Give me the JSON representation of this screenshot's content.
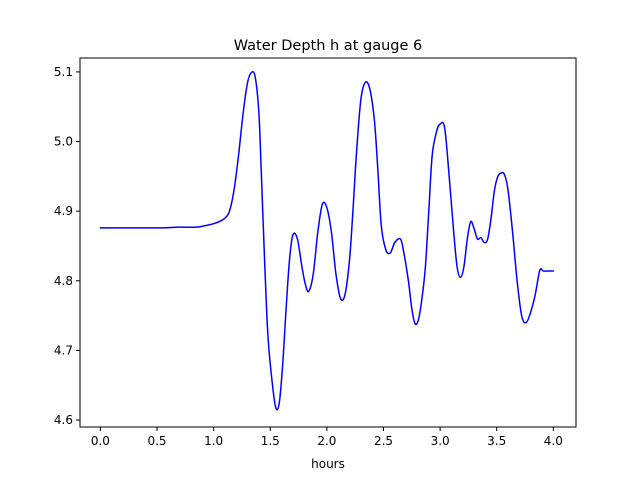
{
  "chart_data": {
    "type": "line",
    "title": "Water Depth h at gauge 6",
    "xlabel": "hours",
    "ylabel": "",
    "xlim": [
      -0.18,
      4.2
    ],
    "ylim": [
      4.59,
      5.12
    ],
    "xticks": [
      0.0,
      0.5,
      1.0,
      1.5,
      2.0,
      2.5,
      3.0,
      3.5,
      4.0
    ],
    "xtick_labels": [
      "0.0",
      "0.5",
      "1.0",
      "1.5",
      "2.0",
      "2.5",
      "3.0",
      "3.5",
      "4.0"
    ],
    "yticks": [
      4.6,
      4.7,
      4.8,
      4.9,
      5.0,
      5.1
    ],
    "ytick_labels": [
      "4.6",
      "4.7",
      "4.8",
      "4.9",
      "5.0",
      "5.1"
    ],
    "grid": false,
    "legend": "none",
    "series": [
      {
        "color": "#0000ff",
        "x": [
          0.0,
          0.2,
          0.4,
          0.55,
          0.7,
          0.85,
          0.92,
          1.0,
          1.05,
          1.1,
          1.14,
          1.18,
          1.22,
          1.26,
          1.3,
          1.34,
          1.37,
          1.4,
          1.42,
          1.45,
          1.48,
          1.52,
          1.55,
          1.58,
          1.61,
          1.64,
          1.67,
          1.7,
          1.74,
          1.78,
          1.81,
          1.84,
          1.88,
          1.92,
          1.96,
          2.0,
          2.04,
          2.08,
          2.12,
          2.16,
          2.2,
          2.23,
          2.26,
          2.3,
          2.34,
          2.38,
          2.42,
          2.45,
          2.48,
          2.52,
          2.56,
          2.6,
          2.65,
          2.68,
          2.72,
          2.75,
          2.78,
          2.81,
          2.84,
          2.87,
          2.9,
          2.93,
          2.97,
          3.0,
          3.04,
          3.08,
          3.12,
          3.15,
          3.18,
          3.21,
          3.24,
          3.27,
          3.3,
          3.33,
          3.36,
          3.39,
          3.42,
          3.45,
          3.48,
          3.51,
          3.54,
          3.57,
          3.6,
          3.64,
          3.68,
          3.72,
          3.76,
          3.8,
          3.84,
          3.88,
          3.91,
          3.94,
          3.97,
          4.0
        ],
        "y": [
          4.876,
          4.876,
          4.876,
          4.876,
          4.877,
          4.877,
          4.879,
          4.882,
          4.885,
          4.89,
          4.9,
          4.93,
          4.98,
          5.04,
          5.085,
          5.1,
          5.09,
          5.04,
          4.96,
          4.83,
          4.72,
          4.65,
          4.617,
          4.625,
          4.68,
          4.76,
          4.83,
          4.866,
          4.86,
          4.82,
          4.795,
          4.785,
          4.81,
          4.87,
          4.91,
          4.905,
          4.87,
          4.81,
          4.775,
          4.78,
          4.83,
          4.9,
          4.98,
          5.06,
          5.085,
          5.075,
          5.03,
          4.96,
          4.88,
          4.845,
          4.84,
          4.855,
          4.86,
          4.84,
          4.8,
          4.76,
          4.738,
          4.745,
          4.775,
          4.82,
          4.9,
          4.98,
          5.015,
          5.025,
          5.02,
          4.95,
          4.87,
          4.82,
          4.805,
          4.82,
          4.86,
          4.885,
          4.875,
          4.86,
          4.862,
          4.855,
          4.86,
          4.89,
          4.93,
          4.95,
          4.955,
          4.952,
          4.93,
          4.87,
          4.8,
          4.75,
          4.74,
          4.755,
          4.78,
          4.815,
          4.814,
          4.814,
          4.814,
          4.814
        ]
      }
    ]
  }
}
